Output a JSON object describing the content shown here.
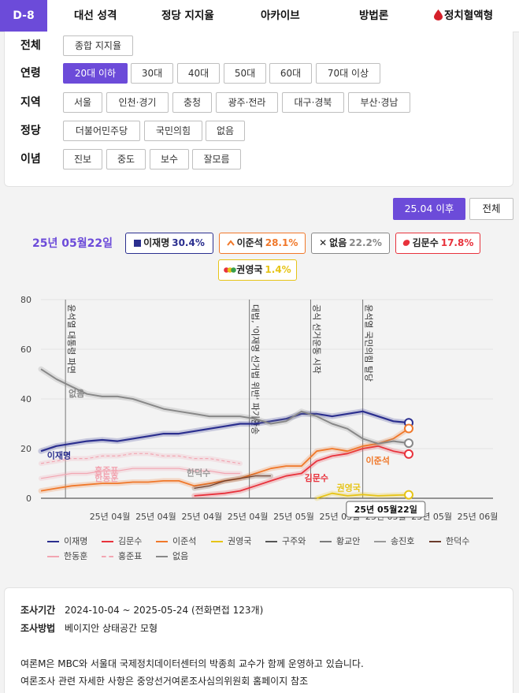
{
  "nav": {
    "dday": "D-8",
    "tabs": [
      "대선 성격",
      "정당 지지율",
      "아카이브",
      "방법론",
      "정치혈액형"
    ]
  },
  "filters": {
    "rows": [
      {
        "label": "전체",
        "options": [
          "종합 지지율"
        ],
        "active": -1
      },
      {
        "label": "연령",
        "options": [
          "20대 이하",
          "30대",
          "40대",
          "50대",
          "60대",
          "70대 이상"
        ],
        "active": 0
      },
      {
        "label": "지역",
        "options": [
          "서울",
          "인천·경기",
          "충청",
          "광주·전라",
          "대구·경북",
          "부산·경남"
        ],
        "active": -1
      },
      {
        "label": "정당",
        "options": [
          "더불어민주당",
          "국민의힘",
          "없음"
        ],
        "active": -1
      },
      {
        "label": "이념",
        "options": [
          "진보",
          "중도",
          "보수",
          "잘모름"
        ],
        "active": -1
      }
    ]
  },
  "range_buttons": {
    "recent": "25.04 이후",
    "all": "전체"
  },
  "selected_date": "25년 05월22일",
  "badges": [
    {
      "name": "이재명",
      "value": "30.4%",
      "color": "#2b2f8f",
      "icon": "square-icon"
    },
    {
      "name": "이준석",
      "value": "28.1%",
      "color": "#f0782a",
      "icon": "chevron-up-icon"
    },
    {
      "name": "없음",
      "value": "22.2%",
      "color": "#888888",
      "icon": "x-icon"
    },
    {
      "name": "김문수",
      "value": "17.8%",
      "color": "#e8323c",
      "icon": "party-leaf-icon"
    },
    {
      "name": "권영국",
      "value": "1.4%",
      "color": "#e6c417",
      "icon": "party-dots-icon"
    }
  ],
  "chart_data": {
    "type": "line",
    "ylim": [
      0,
      80
    ],
    "yticks": [
      0,
      20,
      40,
      60,
      80
    ],
    "x": [
      0,
      1,
      2,
      3,
      4,
      5,
      6,
      7,
      8,
      9,
      10,
      11,
      12,
      13,
      14,
      15,
      16,
      17,
      18,
      19,
      20,
      21,
      22,
      23,
      24
    ],
    "xticks": [
      {
        "x": 4.5,
        "label": "25년 04월"
      },
      {
        "x": 7.5,
        "label": "25년 04월"
      },
      {
        "x": 10.5,
        "label": "25년 04월"
      },
      {
        "x": 13.5,
        "label": "25년 04월"
      },
      {
        "x": 16.5,
        "label": "25년 05월"
      },
      {
        "x": 19.5,
        "label": "25년 05월"
      },
      {
        "x": 22.5,
        "label": "25년 05월"
      },
      {
        "x": 25.5,
        "label": "25년 05월"
      },
      {
        "x": 28.5,
        "label": "25년 06월"
      }
    ],
    "events": [
      {
        "x": 1.6,
        "label": "윤석열 대통령 파면"
      },
      {
        "x": 13.6,
        "label": "대법, '이재명 선거법 위반' 파기환송"
      },
      {
        "x": 17.6,
        "label": "공식 선거운동 시작"
      },
      {
        "x": 21.0,
        "label": "윤석열 국민의힘 탈당"
      }
    ],
    "series": [
      {
        "name": "이재명",
        "color": "#2b2f8f",
        "width": 2.2,
        "values": [
          19,
          21,
          22,
          23,
          23.5,
          23,
          24,
          25,
          26,
          26,
          27,
          28,
          29,
          30,
          30,
          31,
          32,
          34,
          34,
          33,
          34,
          35,
          33,
          31,
          30.4
        ]
      },
      {
        "name": "김문수",
        "color": "#e8323c",
        "width": 1.8,
        "values": [
          null,
          null,
          null,
          null,
          null,
          null,
          null,
          null,
          null,
          null,
          1,
          1.5,
          2,
          3,
          5,
          7,
          9,
          10,
          15,
          17,
          18,
          20,
          21,
          19,
          17.8
        ]
      },
      {
        "name": "이준석",
        "color": "#f0782a",
        "width": 1.8,
        "values": [
          3,
          4,
          5,
          5.5,
          6,
          6,
          6.5,
          6.5,
          7,
          7,
          5,
          6,
          7,
          8,
          10,
          12,
          13,
          13,
          19,
          20,
          19,
          21,
          22,
          24,
          28.1
        ]
      },
      {
        "name": "권영국",
        "color": "#e6c417",
        "width": 1.8,
        "values": [
          null,
          null,
          null,
          null,
          null,
          null,
          null,
          null,
          null,
          null,
          null,
          null,
          null,
          null,
          null,
          null,
          null,
          null,
          0,
          2,
          1,
          1.5,
          1,
          1.2,
          1.4
        ]
      },
      {
        "name": "구주와",
        "color": "#555555",
        "width": 1.2,
        "values": [
          null,
          null,
          null,
          null,
          null,
          null,
          null,
          null,
          null,
          null,
          null,
          null,
          null,
          null,
          null,
          null,
          null,
          null,
          null,
          null,
          null,
          null,
          null,
          null,
          null
        ]
      },
      {
        "name": "황교안",
        "color": "#7a7a7a",
        "width": 1.2,
        "values": [
          null,
          null,
          null,
          null,
          null,
          null,
          null,
          null,
          null,
          null,
          null,
          null,
          null,
          null,
          null,
          null,
          null,
          null,
          null,
          null,
          null,
          null,
          null,
          null,
          null
        ]
      },
      {
        "name": "송진호",
        "color": "#9a9a9a",
        "width": 1.2,
        "values": [
          null,
          null,
          null,
          null,
          null,
          null,
          null,
          null,
          null,
          null,
          null,
          null,
          null,
          null,
          null,
          null,
          null,
          null,
          null,
          null,
          null,
          null,
          null,
          null,
          null
        ]
      },
      {
        "name": "한덕수",
        "color": "#6b3b2b",
        "width": 1.2,
        "values": [
          null,
          null,
          null,
          null,
          null,
          null,
          null,
          null,
          null,
          null,
          4,
          5,
          7,
          8,
          9,
          9,
          null,
          null,
          null,
          null,
          null,
          null,
          null,
          null,
          null
        ]
      },
      {
        "name": "한동훈",
        "color": "#f2a6b2",
        "width": 1.2,
        "values": [
          8,
          9,
          10,
          10,
          11,
          11,
          12,
          12,
          12,
          12,
          11,
          11,
          10,
          10,
          null,
          null,
          null,
          null,
          null,
          null,
          null,
          null,
          null,
          null,
          null
        ]
      },
      {
        "name": "홍준표",
        "color": "#f2a6b2",
        "width": 1.2,
        "dash": "4,3",
        "values": [
          14,
          15,
          16,
          16,
          17,
          17,
          18,
          18,
          17,
          17,
          16,
          16,
          15,
          14,
          null,
          null,
          null,
          null,
          null,
          null,
          null,
          null,
          null,
          null,
          null
        ]
      },
      {
        "name": "없음",
        "color": "#888888",
        "width": 2.0,
        "values": [
          52,
          48,
          45,
          42,
          41,
          41,
          40,
          38,
          36,
          35,
          34,
          33,
          33,
          33,
          32,
          30,
          31,
          35,
          33,
          30,
          28,
          24,
          22,
          23,
          22.2
        ]
      }
    ],
    "labels": [
      {
        "text": "이재명",
        "x": 0.4,
        "y": 16,
        "color": "#2b2f8f"
      },
      {
        "text": "없음",
        "x": 1.8,
        "y": 41,
        "color": "#888888"
      },
      {
        "text": "홍준표",
        "x": 3.5,
        "y": 10,
        "color": "#f2a6b2"
      },
      {
        "text": "한동훈",
        "x": 3.5,
        "y": 7,
        "color": "#f2a6b2"
      },
      {
        "text": "한덕수",
        "x": 9.5,
        "y": 9,
        "color": "#9a9a9a"
      },
      {
        "text": "김문수",
        "x": 17.2,
        "y": 7,
        "color": "#e8323c"
      },
      {
        "text": "권영국",
        "x": 19.3,
        "y": 3,
        "color": "#e6c417"
      },
      {
        "text": "이준석",
        "x": 21.2,
        "y": 14,
        "color": "#f0782a"
      }
    ],
    "tooltip": {
      "x": 22.5,
      "label": "25년 05월22일"
    }
  },
  "legend": [
    "이재명",
    "김문수",
    "이준석",
    "권영국",
    "구주와",
    "황교안",
    "송진호",
    "한덕수",
    "한동훈",
    "홍준표",
    "없음"
  ],
  "info": {
    "period_key": "조사기간",
    "period_value": "2024-10-04 ~ 2025-05-24 (전화면접 123개)",
    "method_key": "조사방법",
    "method_value": "베이지안 상태공간 모형",
    "note1": "여론M은 MBC와 서울대 국제정치데이터센터의 박종희 교수가 함께 운영하고 있습니다.",
    "note2": "여론조사 관련 자세한 사항은 중앙선거여론조사심의위원회 홈페이지 참조"
  }
}
